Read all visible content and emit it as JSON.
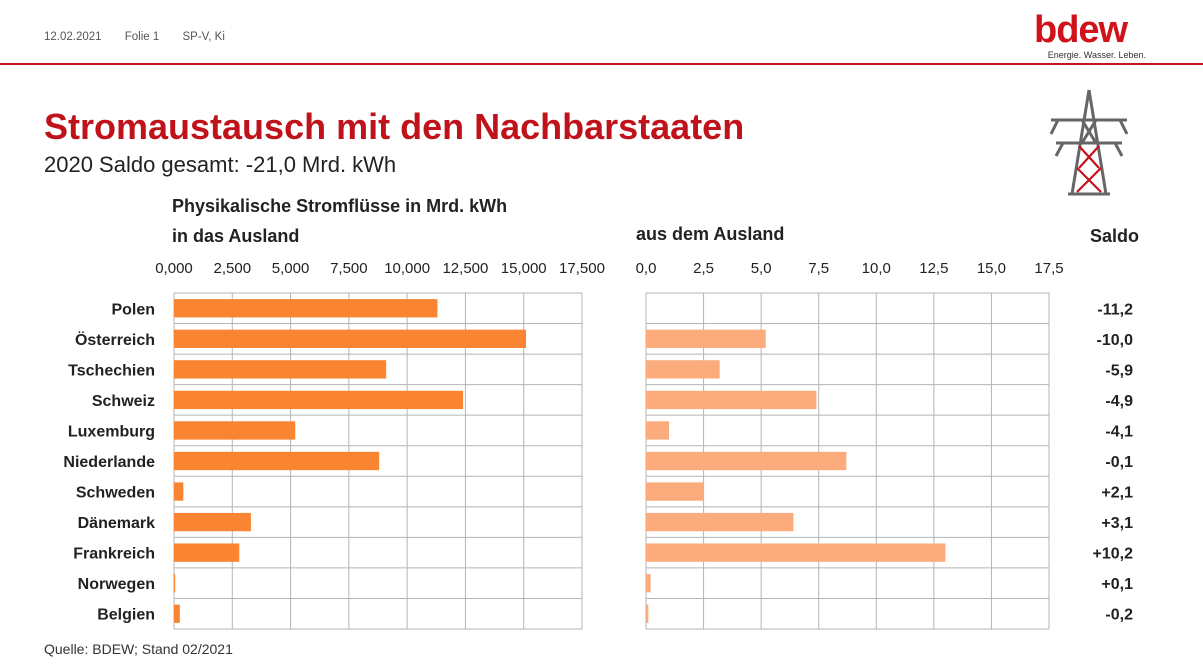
{
  "header": {
    "date": "12.02.2021",
    "slide": "Folie 1",
    "author": "SP-V, Ki"
  },
  "logo": {
    "word": "bdew",
    "tagline": "Energie. Wasser. Leben."
  },
  "title": "Stromaustausch mit den Nachbarstaaten",
  "subtitle": "2020 Saldo gesamt: -21,0 Mrd. kWh",
  "chart_header": {
    "line1": "Physikalische Stromflüsse in Mrd. kWh",
    "export_label": "in das Ausland",
    "import_label": "aus dem Ausland",
    "saldo_label": "Saldo"
  },
  "source": "Quelle: BDEW; Stand 02/2021",
  "colors": {
    "brand": "#c6121a",
    "export_bar": "#f98533",
    "import_bar": "#fcac7c",
    "grid": "#b5b5b5"
  },
  "chart_data": [
    {
      "type": "bar",
      "orientation": "horizontal",
      "title": "in das Ausland",
      "categories": [
        "Polen",
        "Österreich",
        "Tschechien",
        "Schweiz",
        "Luxemburg",
        "Niederlande",
        "Schweden",
        "Dänemark",
        "Frankreich",
        "Norwegen",
        "Belgien"
      ],
      "values": [
        11.3,
        15.1,
        9.1,
        12.4,
        5.2,
        8.8,
        0.4,
        3.3,
        2.8,
        0.05,
        0.25
      ],
      "xlim": [
        0,
        17.5
      ],
      "ticks": [
        "0,000",
        "2,500",
        "5,000",
        "7,500",
        "10,000",
        "12,500",
        "15,000",
        "17,500"
      ],
      "grid": true
    },
    {
      "type": "bar",
      "orientation": "horizontal",
      "title": "aus dem Ausland",
      "categories": [
        "Polen",
        "Österreich",
        "Tschechien",
        "Schweiz",
        "Luxemburg",
        "Niederlande",
        "Schweden",
        "Dänemark",
        "Frankreich",
        "Norwegen",
        "Belgien"
      ],
      "values": [
        0,
        5.2,
        3.2,
        7.4,
        1.0,
        8.7,
        2.5,
        6.4,
        13.0,
        0.2,
        0.1
      ],
      "xlim": [
        0,
        17.5
      ],
      "ticks": [
        "0,0",
        "2,5",
        "5,0",
        "7,5",
        "10,0",
        "12,5",
        "15,0",
        "17,5"
      ],
      "grid": true
    }
  ],
  "saldo": [
    "-11,2",
    "-10,0",
    "-5,9",
    "-4,9",
    "-4,1",
    "-0,1",
    "+2,1",
    "+3,1",
    "+10,2",
    "+0,1",
    "-0,2"
  ]
}
